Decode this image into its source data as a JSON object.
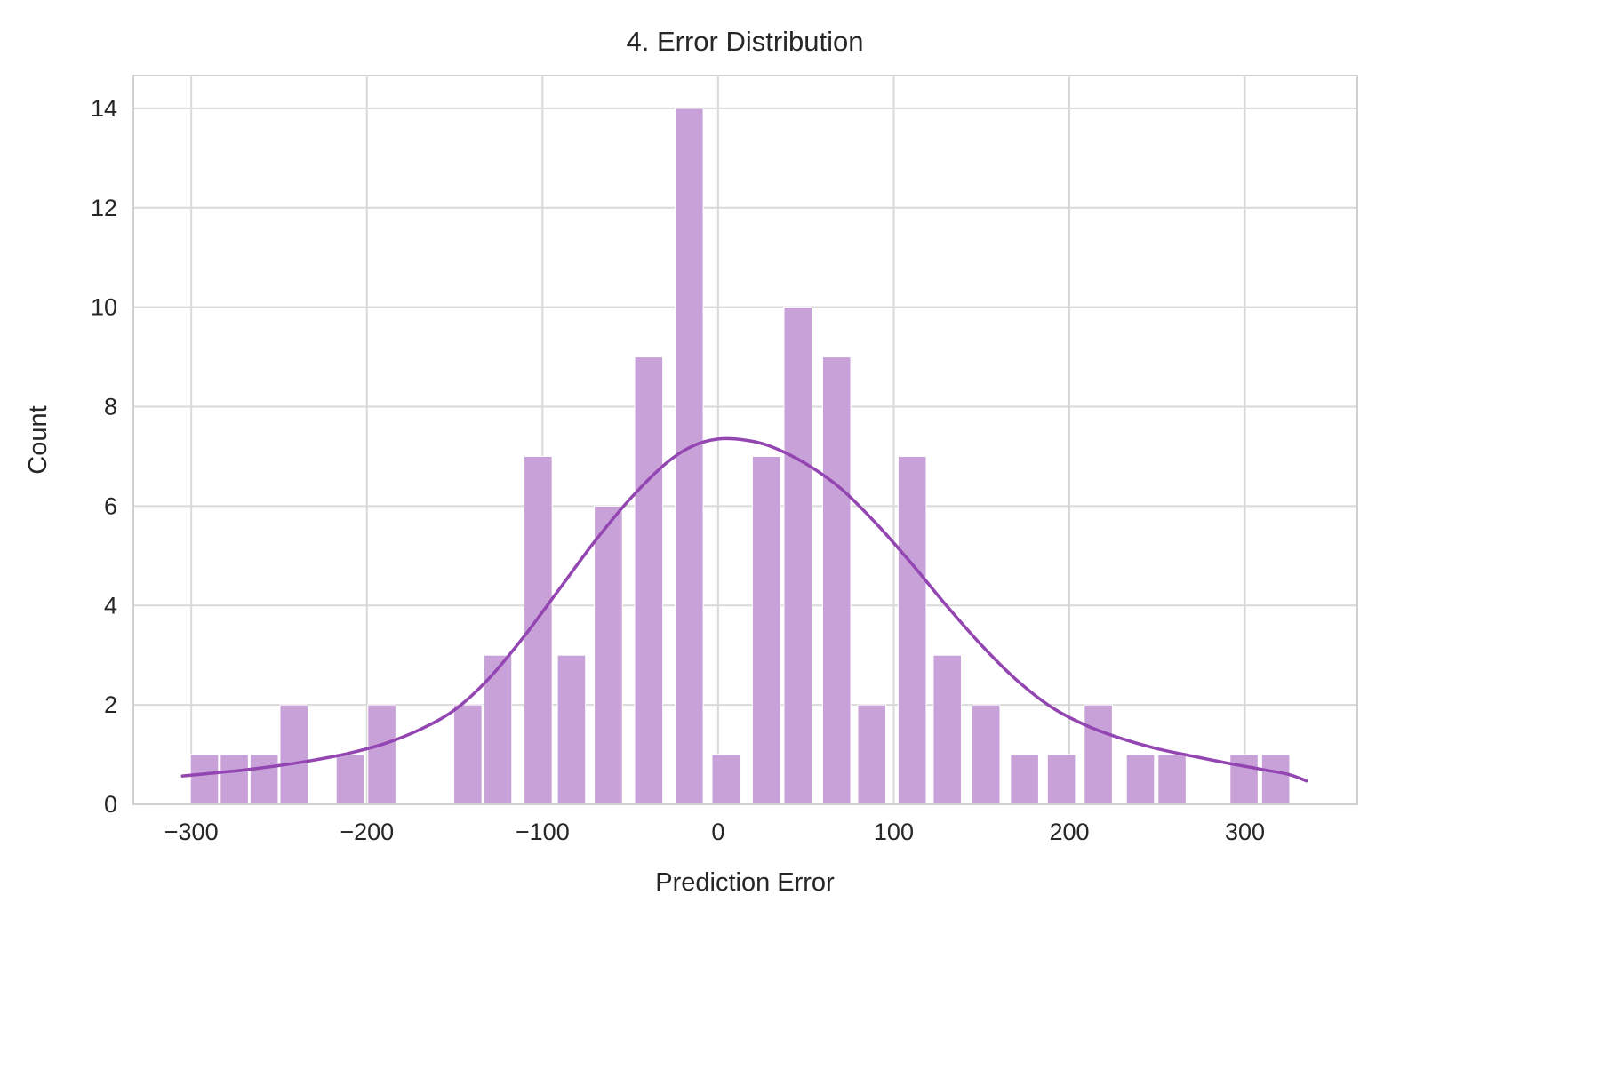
{
  "chart_data": {
    "type": "bar",
    "subtype": "histogram_with_kde",
    "title": "4. Error Distribution",
    "xlabel": "Prediction Error",
    "ylabel": "Count",
    "xlim": [
      -333,
      364
    ],
    "ylim": [
      0,
      14.66
    ],
    "grid": true,
    "legend": "none",
    "x_ticks": [
      -300,
      -200,
      -100,
      0,
      100,
      200,
      300
    ],
    "x_tick_labels": [
      "−300",
      "−200",
      "−100",
      "0",
      "100",
      "200",
      "300"
    ],
    "y_ticks": [
      0,
      2,
      4,
      6,
      8,
      10,
      12,
      14
    ],
    "y_tick_labels": [
      "0",
      "2",
      "4",
      "6",
      "8",
      "10",
      "12",
      "14"
    ],
    "bin_width": 17,
    "bars": [
      [
        -301,
        1
      ],
      [
        -284,
        1
      ],
      [
        -267,
        1
      ],
      [
        -250,
        2
      ],
      [
        -218,
        1
      ],
      [
        -200,
        2
      ],
      [
        -151,
        2
      ],
      [
        -134,
        3
      ],
      [
        -111,
        7
      ],
      [
        -92,
        3
      ],
      [
        -71,
        6
      ],
      [
        -48,
        9
      ],
      [
        -25,
        14
      ],
      [
        -4,
        1
      ],
      [
        19,
        7
      ],
      [
        37,
        10
      ],
      [
        59,
        9
      ],
      [
        79,
        2
      ],
      [
        102,
        7
      ],
      [
        122,
        3
      ],
      [
        144,
        2
      ],
      [
        166,
        1
      ],
      [
        187,
        1
      ],
      [
        208,
        2
      ],
      [
        232,
        1
      ],
      [
        250,
        1
      ],
      [
        291,
        1
      ],
      [
        309,
        1
      ]
    ],
    "kde_curve": [
      [
        -305,
        0.57
      ],
      [
        -290,
        0.62
      ],
      [
        -270,
        0.69
      ],
      [
        -250,
        0.78
      ],
      [
        -230,
        0.89
      ],
      [
        -210,
        1.03
      ],
      [
        -190,
        1.22
      ],
      [
        -170,
        1.5
      ],
      [
        -150,
        1.9
      ],
      [
        -130,
        2.55
      ],
      [
        -110,
        3.4
      ],
      [
        -90,
        4.35
      ],
      [
        -70,
        5.3
      ],
      [
        -50,
        6.15
      ],
      [
        -30,
        6.85
      ],
      [
        -15,
        7.2
      ],
      [
        0,
        7.35
      ],
      [
        15,
        7.33
      ],
      [
        30,
        7.2
      ],
      [
        50,
        6.85
      ],
      [
        70,
        6.35
      ],
      [
        90,
        5.65
      ],
      [
        110,
        4.85
      ],
      [
        130,
        4.0
      ],
      [
        150,
        3.2
      ],
      [
        170,
        2.5
      ],
      [
        190,
        1.95
      ],
      [
        210,
        1.58
      ],
      [
        230,
        1.32
      ],
      [
        250,
        1.12
      ],
      [
        270,
        0.97
      ],
      [
        290,
        0.83
      ],
      [
        310,
        0.7
      ],
      [
        325,
        0.6
      ],
      [
        335,
        0.47
      ]
    ],
    "colors": {
      "bar_fill": "#c9a1d9",
      "bar_edge": "#ffffff",
      "kde_line": "#9345b1",
      "grid": "#d9d9d9",
      "plot_border": "#cfcfcf",
      "text": "#262626",
      "background": "#ffffff"
    }
  }
}
